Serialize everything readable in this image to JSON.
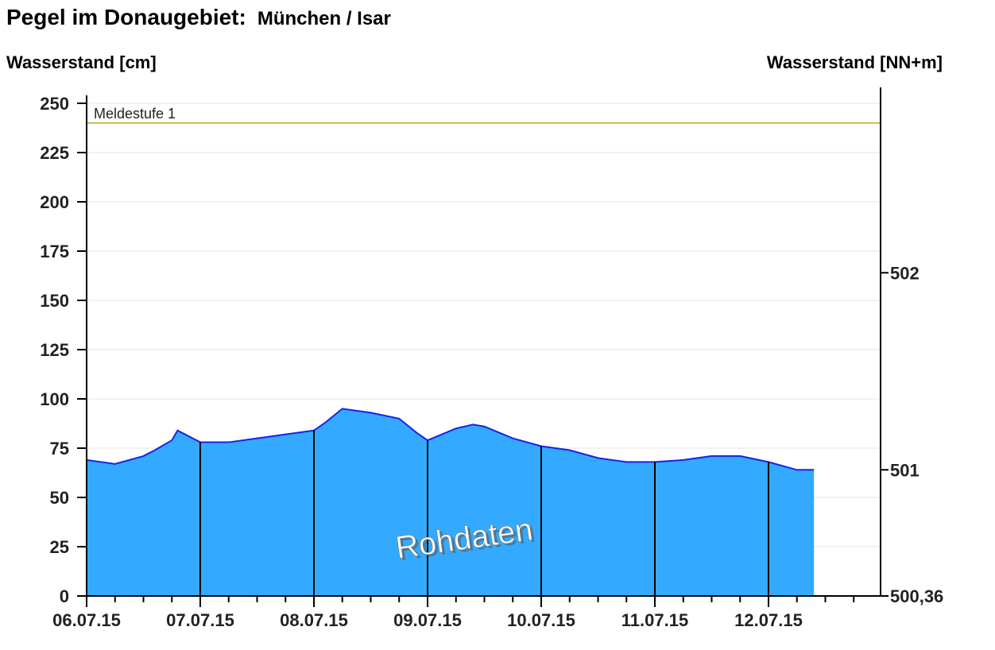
{
  "header": {
    "title": "Pegel im Donaugebiet:",
    "station": "München / Isar"
  },
  "chart_data": {
    "type": "area",
    "title": "Pegel im Donaugebiet:",
    "subtitle": "München / Isar",
    "ylabel": "Wasserstand [cm]",
    "y2label": "Wasserstand [NN+m]",
    "ylim": [
      0,
      250
    ],
    "yticks": [
      0,
      25,
      50,
      75,
      100,
      125,
      150,
      175,
      200,
      225,
      250
    ],
    "y2ticks": [
      {
        "cm": 0,
        "label": "500,36"
      },
      {
        "cm": 64,
        "label": "501"
      },
      {
        "cm": 164,
        "label": "502"
      }
    ],
    "xlim": [
      "2015-07-06T00:00",
      "2015-07-13T00:00"
    ],
    "xtick_labels": [
      "06.07.15",
      "07.07.15",
      "08.07.15",
      "09.07.15",
      "10.07.15",
      "11.07.15",
      "12.07.15"
    ],
    "x_time_unit": "day (since 06.07.15 00:00)",
    "grid": true,
    "threshold": {
      "label": "Meldestufe 1",
      "value": 240,
      "color": "#c9b94a"
    },
    "watermark": "Rohdaten",
    "fill_color": "#33aaff",
    "line_color": "#1a22e6",
    "series": [
      {
        "x": [
          0.0,
          0.25,
          0.5,
          0.6,
          0.75,
          0.8,
          1.0,
          1.25,
          1.5,
          1.75,
          2.0,
          2.1,
          2.25,
          2.5,
          2.75,
          2.9,
          3.0,
          3.25,
          3.4,
          3.5,
          3.75,
          4.0,
          4.25,
          4.5,
          4.75,
          5.0,
          5.25,
          5.5,
          5.75,
          6.0,
          6.25,
          6.4
        ],
        "values": [
          69,
          67,
          71,
          74,
          79,
          84,
          78,
          78,
          80,
          82,
          84,
          88,
          95,
          93,
          90,
          83,
          79,
          85,
          87,
          86,
          80,
          76,
          74,
          70,
          68,
          68,
          69,
          71,
          71,
          68,
          64,
          64
        ]
      }
    ]
  }
}
